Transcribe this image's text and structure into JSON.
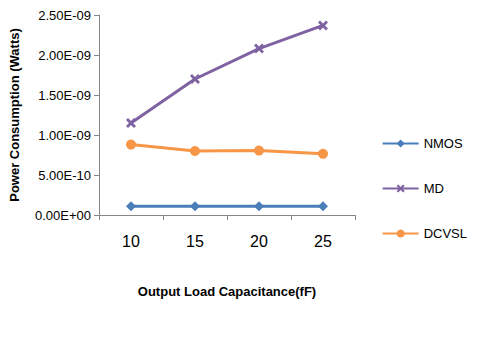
{
  "chart_data": {
    "type": "line",
    "xlabel": "Output Load Capacitance(fF)",
    "ylabel": "Power Consumption (Watts)",
    "categories": [
      "10",
      "15",
      "20",
      "25"
    ],
    "series": [
      {
        "name": "NMOS",
        "color": "#4a7ebb",
        "marker": "diamond",
        "values": [
          1.1e-10,
          1.1e-10,
          1.1e-10,
          1.1e-10
        ]
      },
      {
        "name": "MD",
        "color": "#7e62a1",
        "marker": "x",
        "values": [
          1.15e-09,
          1.7e-09,
          2.08e-09,
          2.37e-09
        ]
      },
      {
        "name": "DCVSL",
        "color": "#f79646",
        "marker": "circle",
        "values": [
          8.8e-10,
          8e-10,
          8.05e-10,
          7.65e-10
        ]
      }
    ],
    "ylim": [
      0,
      2.5e-09
    ],
    "yticks": [
      {
        "value": 0,
        "label": "0.00E+00"
      },
      {
        "value": 5e-10,
        "label": "5.00E-10"
      },
      {
        "value": 1e-09,
        "label": "1.00E-09"
      },
      {
        "value": 1.5e-09,
        "label": "1.50E-09"
      },
      {
        "value": 2e-09,
        "label": "2.00E-09"
      },
      {
        "value": 2.5e-09,
        "label": "2.50E-09"
      }
    ],
    "grid": false,
    "legend": "right"
  }
}
